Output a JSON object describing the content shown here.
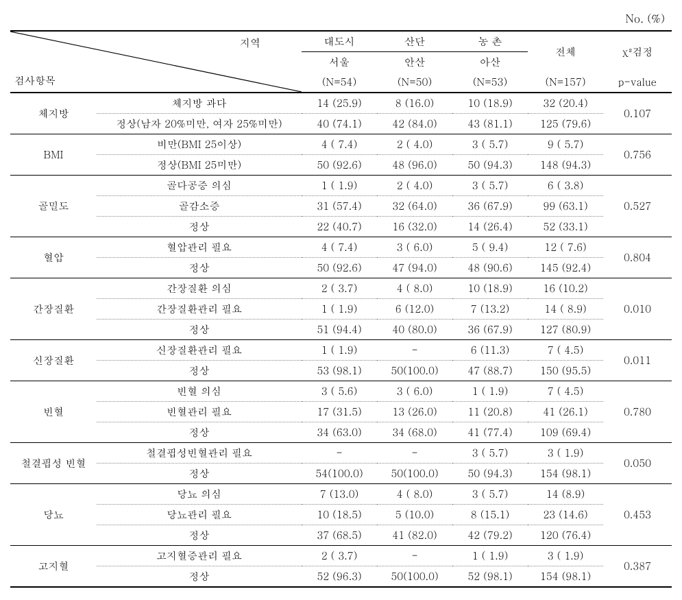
{
  "unit_label": "No. (%)",
  "header": {
    "region_label": "지역",
    "exam_item_label": "검사항목",
    "chi2_label": "χ²검정",
    "pvalue_label": "p-value",
    "total_label": "전체",
    "total_n": "(N=157)",
    "regions": [
      {
        "type": "대도시",
        "city": "서울",
        "n": "(N=54)"
      },
      {
        "type": "산단",
        "city": "안산",
        "n": "(N=50)"
      },
      {
        "type": "농 촌",
        "city": "아산",
        "n": "(N=53)"
      }
    ]
  },
  "groups": [
    {
      "name": "체지방",
      "pvalue": "0.107",
      "rows": [
        {
          "label": "체지방 과다",
          "c1": "14 (25.9)",
          "c2": "8 (16.0)",
          "c3": "10 (18.9)",
          "total": "32 (20.4)"
        },
        {
          "label": "정상(남자 20%미만, 여자 25%미만)",
          "c1": "40 (74.1)",
          "c2": "42 (84.0)",
          "c3": "43 (81.1)",
          "total": "125 (79.6)"
        }
      ]
    },
    {
      "name": "BMI",
      "pvalue": "0.756",
      "rows": [
        {
          "label": "비만(BMI 25이상)",
          "c1": "4 ( 7.4)",
          "c2": "2 ( 4.0)",
          "c3": "3 ( 5.7)",
          "total": "9 ( 5.7)"
        },
        {
          "label": "정상(BMI 25미만)",
          "c1": "50 (92.6)",
          "c2": "48 (96.0)",
          "c3": "50 (94.3)",
          "total": "148 (94.3)"
        }
      ]
    },
    {
      "name": "골밀도",
      "pvalue": "0.527",
      "rows": [
        {
          "label": "골다공증 의심",
          "c1": "1 ( 1.9)",
          "c2": "2 ( 4.0)",
          "c3": "3 ( 5.7)",
          "total": "6 ( 3.8)"
        },
        {
          "label": "골감소증",
          "c1": "31 (57.4)",
          "c2": "32 (64.0)",
          "c3": "36 (67.9)",
          "total": "99 (63.1)"
        },
        {
          "label": "정상",
          "c1": "22 (40.7)",
          "c2": "16 (32.0)",
          "c3": "14 (26.4)",
          "total": "52 (33.1)"
        }
      ]
    },
    {
      "name": "혈압",
      "pvalue": "0.804",
      "rows": [
        {
          "label": "혈압관리 필요",
          "c1": "4 ( 7.4)",
          "c2": "3 ( 6.0)",
          "c3": "5 ( 9.4)",
          "total": "12 ( 7.6)"
        },
        {
          "label": "정상",
          "c1": "50 (92.6)",
          "c2": "47 (94.0)",
          "c3": "48 (90.6)",
          "total": "145 (92.4)"
        }
      ]
    },
    {
      "name": "간장질환",
      "pvalue": "0.010",
      "rows": [
        {
          "label": "간장질환 의심",
          "c1": "2 ( 3.7)",
          "c2": "4 ( 8.0)",
          "c3": "10 (18.9)",
          "total": "16 (10.2)"
        },
        {
          "label": "간장질환관리 필요",
          "c1": "1 ( 1.9)",
          "c2": "6 (12.0)",
          "c3": "7 (13.2)",
          "total": "14 ( 8.9)"
        },
        {
          "label": "정상",
          "c1": "51 (94.4)",
          "c2": "40 (80.0)",
          "c3": "36 (67.9)",
          "total": "127 (80.9)"
        }
      ]
    },
    {
      "name": "신장질환",
      "pvalue": "0.011",
      "rows": [
        {
          "label": "신장질환관리 필요",
          "c1": "1 ( 1.9)",
          "c2": "-",
          "c3": "6 (11.3)",
          "total": "7 ( 4.5)"
        },
        {
          "label": "정상",
          "c1": "53 (98.1)",
          "c2": "50(100.0)",
          "c3": "47 (88.7)",
          "total": "150 (95.5)"
        }
      ]
    },
    {
      "name": "빈혈",
      "pvalue": "0.780",
      "rows": [
        {
          "label": "빈혈 의심",
          "c1": "3 ( 5.6)",
          "c2": "3 ( 6.0)",
          "c3": "1 ( 1.9)",
          "total": "7 ( 4.5)"
        },
        {
          "label": "빈혈관리 필요",
          "c1": "17 (31.5)",
          "c2": "13 (26.0)",
          "c3": "11 (20.8)",
          "total": "41 (26.1)"
        },
        {
          "label": "정상",
          "c1": "34 (63.0)",
          "c2": "34 (68.0)",
          "c3": "41 (77.4)",
          "total": "109 (69.4)"
        }
      ]
    },
    {
      "name": "철결핍성 빈혈",
      "pvalue": "0.050",
      "rows": [
        {
          "label": "철결핍성빈혈관리 필요",
          "c1": "-",
          "c2": "-",
          "c3": "3 ( 5.7)",
          "total": "3 ( 1.9)"
        },
        {
          "label": "정상",
          "c1": "54(100.0)",
          "c2": "50(100.0)",
          "c3": "50 (94.3)",
          "total": "154 (98.1)"
        }
      ]
    },
    {
      "name": "당뇨",
      "pvalue": "0.453",
      "rows": [
        {
          "label": "당뇨 의심",
          "c1": "7 (13.0)",
          "c2": "4 ( 8.0)",
          "c3": "3 ( 5.7)",
          "total": "14 (8.9)"
        },
        {
          "label": "당뇨관리 필요",
          "c1": "10 (18.5)",
          "c2": "5 (10.0)",
          "c3": "8 (15.1)",
          "total": "23 (14.6)"
        },
        {
          "label": "정상",
          "c1": "37 (68.5)",
          "c2": "41 (82.0)",
          "c3": "42 (79.2)",
          "total": "120 (76.4)"
        }
      ]
    },
    {
      "name": "고지혈",
      "pvalue": "0.387",
      "rows": [
        {
          "label": "고지혈증관리 필요",
          "c1": "2 ( 3.7)",
          "c2": "-",
          "c3": "1 ( 1.9)",
          "total": "3 ( 1.9)"
        },
        {
          "label": "정상",
          "c1": "52 (96.3)",
          "c2": "50(100.0)",
          "c3": "52 (98.1)",
          "total": "154 (98.1)"
        }
      ]
    }
  ]
}
